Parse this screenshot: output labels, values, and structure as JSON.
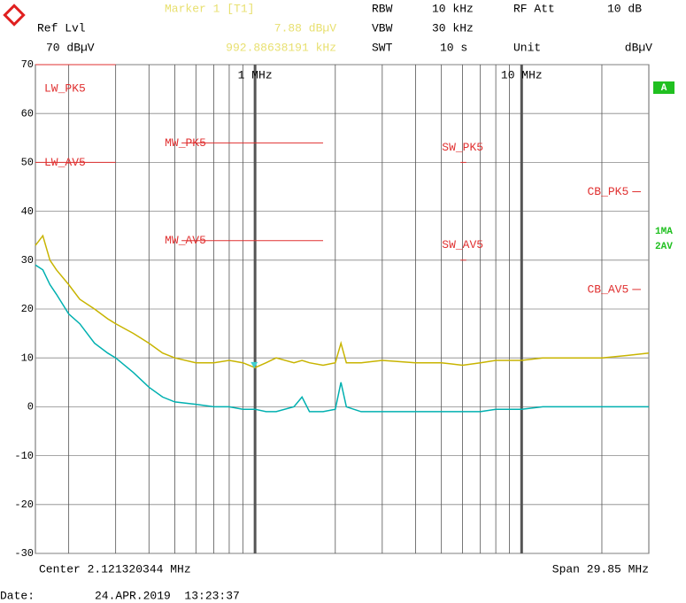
{
  "header": {
    "ref_lvl_label": "Ref Lvl",
    "ref_lvl": "70 dBµV",
    "rbw_label": "RBW",
    "rbw": "10 kHz",
    "rf_att_label": "RF Att",
    "rf_att": "10 dB",
    "vbw_label": "VBW",
    "vbw": "30 kHz",
    "swt_label": "SWT",
    "swt": "10 s",
    "unit_label": "Unit",
    "unit": "dBµV"
  },
  "footer": {
    "center": "Center 2.121320344 MHz",
    "span": "Span 29.85 MHz",
    "date_label": "Date:",
    "date": "24.APR.2019  13:23:37"
  },
  "side": {
    "trace_box": "A",
    "trace1": "1MA",
    "trace2": "2AV"
  },
  "chart_data": {
    "type": "line",
    "log_x": true,
    "grid": true,
    "xlim": [
      0.15,
      30
    ],
    "ylim": [
      -30,
      70
    ],
    "yticks": [
      70,
      60,
      50,
      40,
      30,
      20,
      10,
      0,
      -10,
      -20,
      -30
    ],
    "xticks": [
      {
        "value": 1,
        "label": "1 MHz"
      },
      {
        "value": 10,
        "label": "10 MHz"
      }
    ],
    "xgrid": [
      0.2,
      0.3,
      0.4,
      0.5,
      0.6,
      0.7,
      0.8,
      0.9,
      2,
      3,
      4,
      5,
      6,
      7,
      8,
      9,
      20
    ],
    "marker": {
      "name": "Marker 1 [T1]",
      "x": 0.99288638191,
      "x_label": "992.88638191 kHz",
      "value": 7.88,
      "value_label": "7.88 dBµV",
      "color": "#40d0d0"
    },
    "limits": [
      {
        "name": "LW_PK5",
        "value": 70,
        "range": [
          0.15,
          0.3
        ]
      },
      {
        "name": "LW_AV5",
        "value": 50,
        "range": [
          0.15,
          0.3
        ]
      },
      {
        "name": "MW_PK5",
        "value": 54,
        "range": [
          0.53,
          1.8
        ]
      },
      {
        "name": "MW_AV5",
        "value": 34,
        "range": [
          0.53,
          1.8
        ]
      },
      {
        "name": "SW_PK5",
        "value": 50,
        "range": [
          5.9,
          6.2
        ]
      },
      {
        "name": "SW_AV5",
        "value": 30,
        "range": [
          5.9,
          6.2
        ]
      },
      {
        "name": "CB_PK5",
        "value": 44,
        "range": [
          26,
          28
        ]
      },
      {
        "name": "CB_AV5",
        "value": 24,
        "range": [
          26,
          28
        ]
      }
    ],
    "limit_color": "#e03030",
    "x": [
      0.15,
      0.16,
      0.17,
      0.18,
      0.2,
      0.22,
      0.25,
      0.28,
      0.3,
      0.35,
      0.4,
      0.45,
      0.5,
      0.6,
      0.7,
      0.8,
      0.9,
      1.0,
      1.1,
      1.2,
      1.4,
      1.5,
      1.6,
      1.8,
      2.0,
      2.1,
      2.2,
      2.5,
      3,
      4,
      5,
      6,
      7,
      8,
      10,
      12,
      15,
      20,
      25,
      30
    ],
    "series": [
      {
        "name": "1MA",
        "color": "#c8b400",
        "values": [
          33,
          35,
          30,
          28,
          25,
          22,
          20,
          18,
          17,
          15,
          13,
          11,
          10,
          9,
          9,
          9.5,
          9,
          8,
          9,
          10,
          9,
          9.5,
          9,
          8.5,
          9,
          13,
          9,
          9,
          9.5,
          9,
          9,
          8.5,
          9,
          9.5,
          9.5,
          10,
          10,
          10,
          10.5,
          11
        ]
      },
      {
        "name": "2AV",
        "color": "#00b0b0",
        "values": [
          29,
          28,
          25,
          23,
          19,
          17,
          13,
          11,
          10,
          7,
          4,
          2,
          1,
          0.5,
          0,
          0,
          -0.5,
          -0.5,
          -1,
          -1,
          0,
          2,
          -1,
          -1,
          -0.5,
          5,
          0,
          -1,
          -1,
          -1,
          -1,
          -1,
          -1,
          -0.5,
          -0.5,
          0,
          0,
          0,
          0,
          0
        ]
      }
    ]
  }
}
